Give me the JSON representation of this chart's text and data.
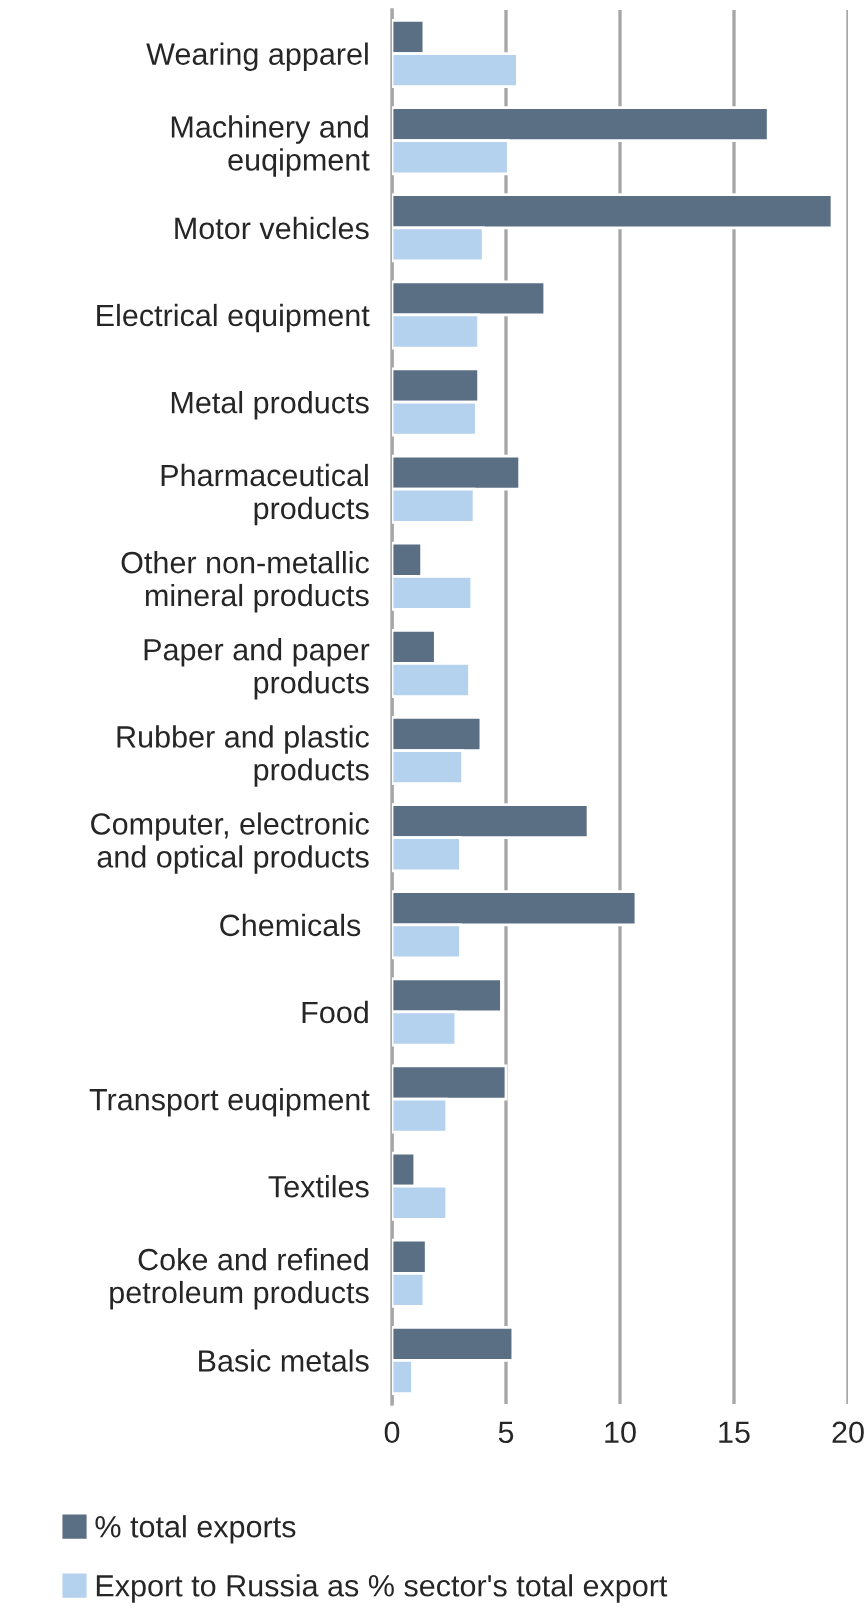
{
  "chart_data": {
    "type": "bar",
    "orientation": "horizontal",
    "categories": [
      "Wearing apparel",
      "Machinery and\neuqipment",
      "Motor vehicles",
      "Electrical equipment",
      "Metal products",
      "Pharmaceutical\nproducts",
      "Other non-metallic\nmineral products",
      "Paper and paper\nproducts",
      "Rubber and plastic\nproducts",
      "Computer, electronic\nand optical products",
      "Chemicals ",
      "Food",
      "Transport euqipment",
      "Textiles",
      "Coke and refined\npetroleum products",
      "Basic metals"
    ],
    "series": [
      {
        "name": "% total exports",
        "color": "#5b6f84",
        "values": [
          1.4,
          16.5,
          19.3,
          6.7,
          3.8,
          5.6,
          1.3,
          1.9,
          3.9,
          8.6,
          10.7,
          4.8,
          5.0,
          1.0,
          1.5,
          5.3
        ]
      },
      {
        "name": "Export to Russia as % sector's total export",
        "color": "#b4d1ee",
        "values": [
          5.5,
          5.1,
          4.0,
          3.8,
          3.7,
          3.6,
          3.5,
          3.4,
          3.1,
          3.0,
          3.0,
          2.8,
          2.4,
          2.4,
          1.4,
          0.9
        ]
      }
    ],
    "xlim": [
      0,
      20
    ],
    "xticks": [
      0,
      5,
      10,
      15,
      20
    ],
    "grid": "x",
    "legend": "bottom"
  }
}
